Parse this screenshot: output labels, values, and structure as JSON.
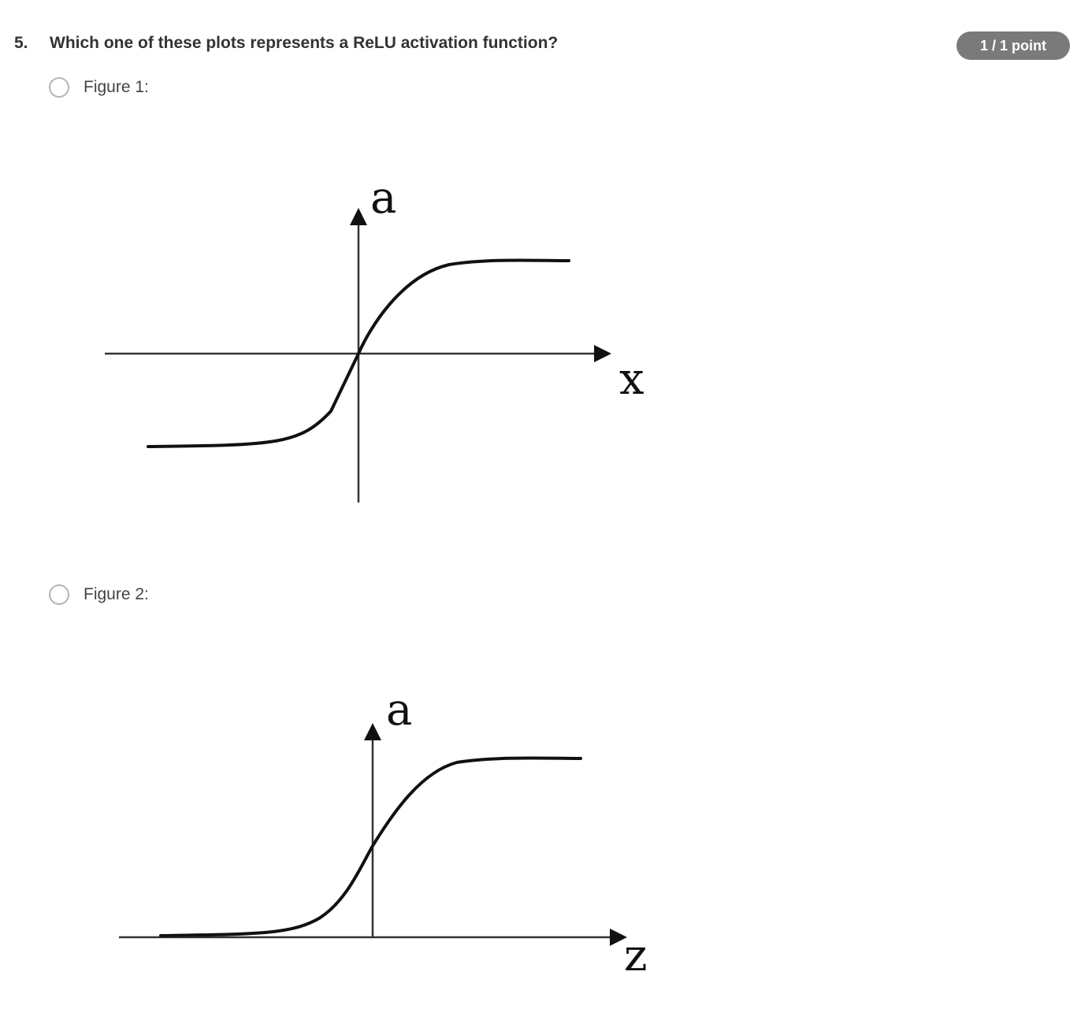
{
  "question": {
    "number": "5.",
    "text": "Which one of these plots represents a ReLU activation function?",
    "points": "1 / 1 point"
  },
  "options": [
    {
      "label": "Figure 1:",
      "selected": false,
      "figure": {
        "x_axis_label": "x",
        "y_axis_label": "a",
        "curve": "tanh (symmetric S-curve through origin)"
      }
    },
    {
      "label": "Figure 2:",
      "selected": false,
      "figure": {
        "x_axis_label": "z",
        "y_axis_label": "a",
        "curve": "sigmoid (S-curve from 0 to upper plateau)"
      }
    }
  ],
  "colors": {
    "text": "#333333",
    "badge_bg": "#7a7a7a",
    "badge_text": "#ffffff",
    "radio_border": "#b5b5b5"
  }
}
